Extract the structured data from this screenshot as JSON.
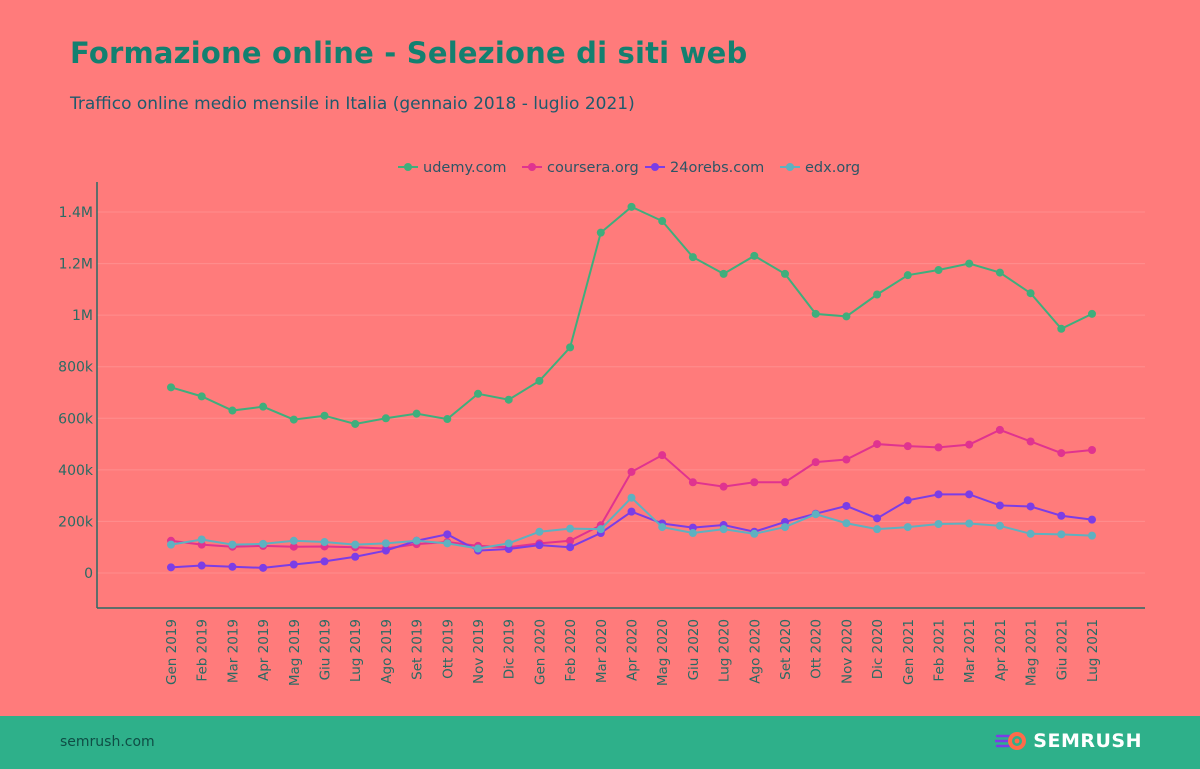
{
  "header": {
    "title": "Formazione online - Selezione di siti web",
    "subtitle": "Traffico online medio mensile in Italia (gennaio 2018 - luglio 2021)"
  },
  "footer": {
    "url": "semrush.com",
    "brand": "SEMRUSH",
    "brand_icon": "semrush-logo-icon"
  },
  "colors": {
    "background": "#ff7b7b",
    "title": "#138070",
    "axis": "#2a6b64",
    "footer": "#2eb08a"
  },
  "chart_data": {
    "type": "line",
    "title": "",
    "xlabel": "",
    "ylabel": "",
    "ylim": [
      -140000,
      1520000
    ],
    "y_ticks": [
      0,
      200000,
      400000,
      600000,
      800000,
      1000000,
      1200000,
      1400000
    ],
    "y_tick_labels": [
      "0",
      "200k",
      "400k",
      "600k",
      "800k",
      "1M",
      "1.2M",
      "1.4M"
    ],
    "legend_position": "top-center",
    "grid": true,
    "categories": [
      "Gen 2019",
      "Feb 2019",
      "Mar 2019",
      "Apr 2019",
      "Mag 2019",
      "Giu 2019",
      "Lug 2019",
      "Ago 2019",
      "Set 2019",
      "Ott 2019",
      "Nov 2019",
      "Dic 2019",
      "Gen 2020",
      "Feb 2020",
      "Mar 2020",
      "Apr 2020",
      "Mag 2020",
      "Giu 2020",
      "Lug 2020",
      "Ago 2020",
      "Set 2020",
      "Ott 2020",
      "Nov 2020",
      "Dic 2020",
      "Gen 2021",
      "Feb 2021",
      "Mar 2021",
      "Apr 2021",
      "Mag 2021",
      "Giu 2021",
      "Lug 2021"
    ],
    "series": [
      {
        "name": "udemy.com",
        "color": "#3fae7c",
        "values": [
          720000,
          685000,
          630000,
          645000,
          595000,
          610000,
          578000,
          600000,
          618000,
          597000,
          695000,
          672000,
          745000,
          875000,
          1320000,
          1420000,
          1365000,
          1225000,
          1160000,
          1230000,
          1160000,
          1005000,
          995000,
          1080000,
          1155000,
          1175000,
          1200000,
          1165000,
          1085000,
          947000,
          1005000
        ]
      },
      {
        "name": "coursera.org",
        "color": "#e0338f",
        "values": [
          125000,
          110000,
          102000,
          105000,
          102000,
          103000,
          100000,
          95000,
          112000,
          120000,
          105000,
          100000,
          115000,
          125000,
          185000,
          392000,
          457000,
          352000,
          335000,
          352000,
          352000,
          430000,
          440000,
          500000,
          492000,
          487000,
          498000,
          555000,
          510000,
          465000,
          477000
        ]
      },
      {
        "name": "24orebs.com",
        "color": "#7b3de6",
        "values": [
          22000,
          29000,
          24000,
          20000,
          33000,
          45000,
          63000,
          87000,
          125000,
          150000,
          87000,
          93000,
          108000,
          100000,
          155000,
          238000,
          192000,
          176000,
          186000,
          160000,
          198000,
          230000,
          260000,
          212000,
          282000,
          305000,
          305000,
          262000,
          258000,
          222000,
          207000
        ]
      },
      {
        "name": "edx.org",
        "color": "#5eb1c0",
        "values": [
          110000,
          130000,
          110000,
          113000,
          125000,
          120000,
          110000,
          115000,
          125000,
          115000,
          95000,
          115000,
          160000,
          172000,
          170000,
          292000,
          178000,
          155000,
          170000,
          152000,
          178000,
          228000,
          193000,
          170000,
          178000,
          190000,
          192000,
          183000,
          152000,
          150000,
          145000
        ]
      }
    ]
  }
}
